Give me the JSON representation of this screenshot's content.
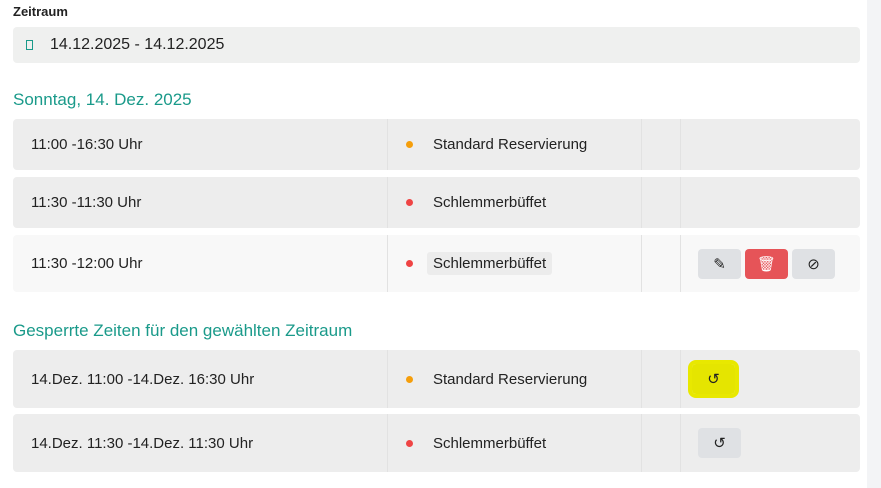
{
  "filter": {
    "label": "Zeitraum",
    "value": "14.12.2025 - 14.12.2025",
    "icon": "calendar-icon"
  },
  "day": {
    "title": "Sonntag, 14. Dez. 2025",
    "rows": [
      {
        "time": "11:00 -16:30 Uhr",
        "type": "Standard Reservierung",
        "color": "#f59e0b"
      },
      {
        "time": "11:30 -11:30 Uhr",
        "type": "Schlemmerbüffet",
        "color": "#ef4444"
      },
      {
        "time": "11:30 -12:00 Uhr",
        "type": "Schlemmerbüffet",
        "color": "#ef4444"
      }
    ]
  },
  "blocked": {
    "title": "Gesperrte Zeiten für den gewählten Zeitraum",
    "rows": [
      {
        "time": "14.Dez. 11:00 -14.Dez. 16:30 Uhr",
        "type": "Standard Reservierung",
        "color": "#f59e0b"
      },
      {
        "time": "14.Dez. 11:30 -14.Dez. 11:30 Uhr",
        "type": "Schlemmerbüffet",
        "color": "#ef4444"
      }
    ]
  }
}
